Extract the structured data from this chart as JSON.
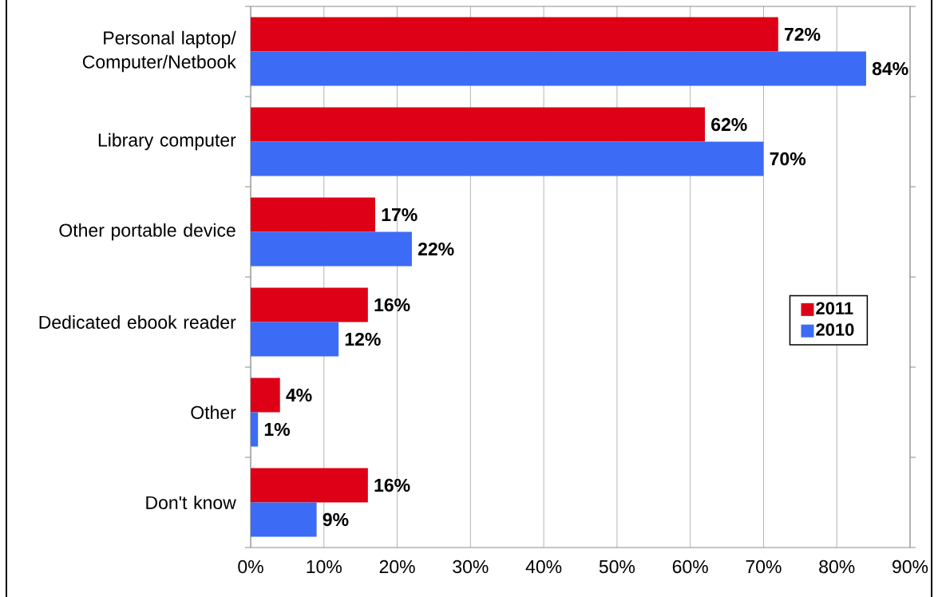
{
  "chart_data": {
    "type": "bar",
    "orientation": "horizontal",
    "categories": [
      "Personal laptop/ Computer/Netbook",
      "Library computer",
      "Other portable device",
      "Dedicated ebook reader",
      "Other",
      "Don't know"
    ],
    "series": [
      {
        "name": "2011",
        "color": "#dd0016",
        "values": [
          72,
          62,
          17,
          16,
          4,
          16
        ],
        "value_labels": [
          "72%",
          "62%",
          "17%",
          "16%",
          "4%",
          "16%"
        ]
      },
      {
        "name": "2010",
        "color": "#3c6bf5",
        "values": [
          84,
          70,
          22,
          12,
          1,
          9
        ],
        "value_labels": [
          "84%",
          "70%",
          "22%",
          "12%",
          "1%",
          "9%"
        ]
      }
    ],
    "xlim": [
      0,
      90
    ],
    "xticks": [
      {
        "value": 0,
        "label": "0%"
      },
      {
        "value": 10,
        "label": "10%"
      },
      {
        "value": 20,
        "label": "20%"
      },
      {
        "value": 30,
        "label": "30%"
      },
      {
        "value": 40,
        "label": "40%"
      },
      {
        "value": 50,
        "label": "50%"
      },
      {
        "value": 60,
        "label": "60%"
      },
      {
        "value": 70,
        "label": "70%"
      },
      {
        "value": 80,
        "label": "80%"
      },
      {
        "value": 90,
        "label": "90%"
      }
    ],
    "grid": "x",
    "legend": "right"
  }
}
